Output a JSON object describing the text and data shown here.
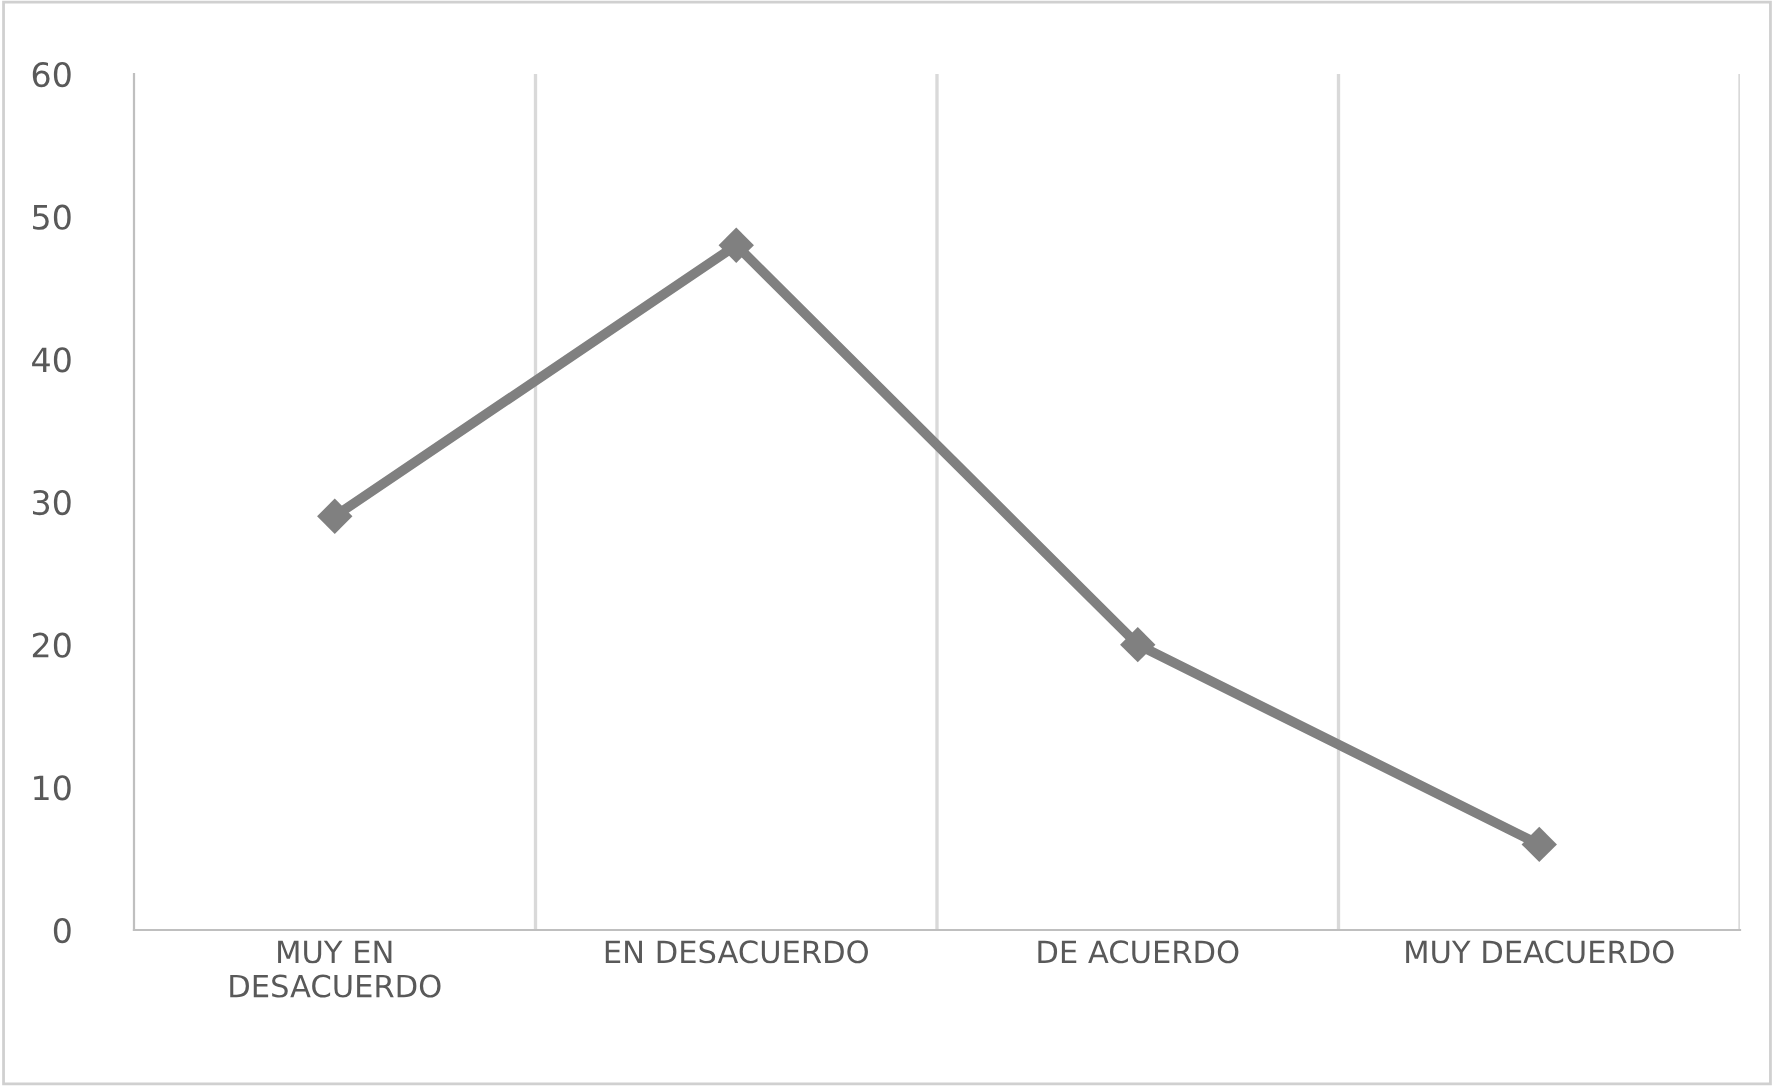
{
  "chart_data": {
    "type": "line",
    "categories": [
      "MUY EN\nDESACUERDO",
      "EN DESACUERDO",
      "DE ACUERDO",
      "MUY DEACUERDO"
    ],
    "series": [
      {
        "color": "#808080",
        "values": [
          29,
          48,
          20,
          6
        ]
      }
    ],
    "ylim": [
      0,
      60
    ],
    "yticks": [
      0,
      10,
      20,
      30,
      40,
      50,
      60
    ],
    "grid": "x",
    "marker": "diamond",
    "line_style": "solid",
    "legend": false
  }
}
